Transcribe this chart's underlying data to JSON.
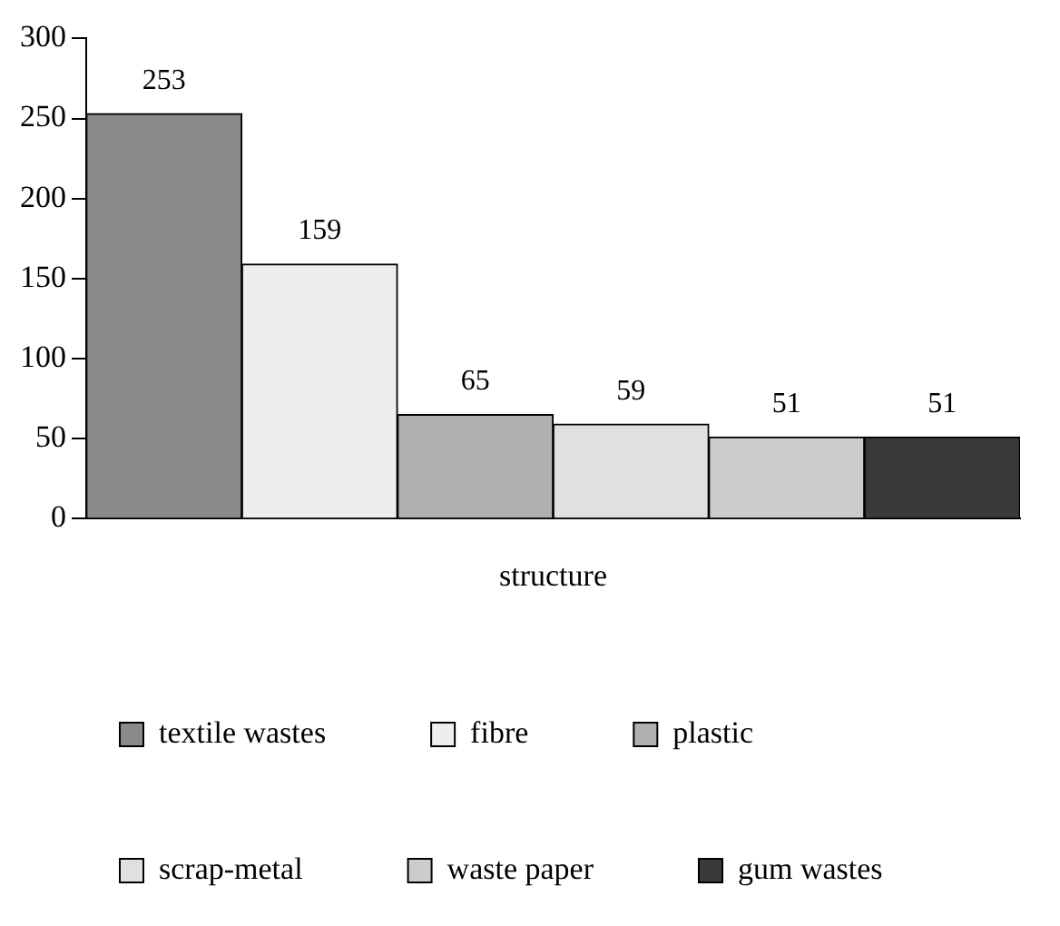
{
  "chart_data": {
    "type": "bar",
    "xlabel": "structure",
    "categories": [
      null
    ],
    "series": [
      {
        "name": "textile wastes",
        "color": "#8a8a8a",
        "values": [
          253
        ]
      },
      {
        "name": "fibre",
        "color": "#eeeeee",
        "values": [
          159
        ]
      },
      {
        "name": "plastic",
        "color": "#b0b0b0",
        "values": [
          65
        ]
      },
      {
        "name": "scrap-metal",
        "color": "#e0e0e0",
        "values": [
          59
        ]
      },
      {
        "name": "waste paper",
        "color": "#cccccc",
        "values": [
          51
        ]
      },
      {
        "name": "gum wastes",
        "color": "#3a3a3a",
        "values": [
          51
        ]
      }
    ],
    "ylim": [
      0,
      300
    ],
    "yticks": [
      0,
      50,
      100,
      150,
      200,
      250,
      300
    ],
    "grid": false,
    "legend": "bottom",
    "tick_labels": "y",
    "data_labels": true
  }
}
